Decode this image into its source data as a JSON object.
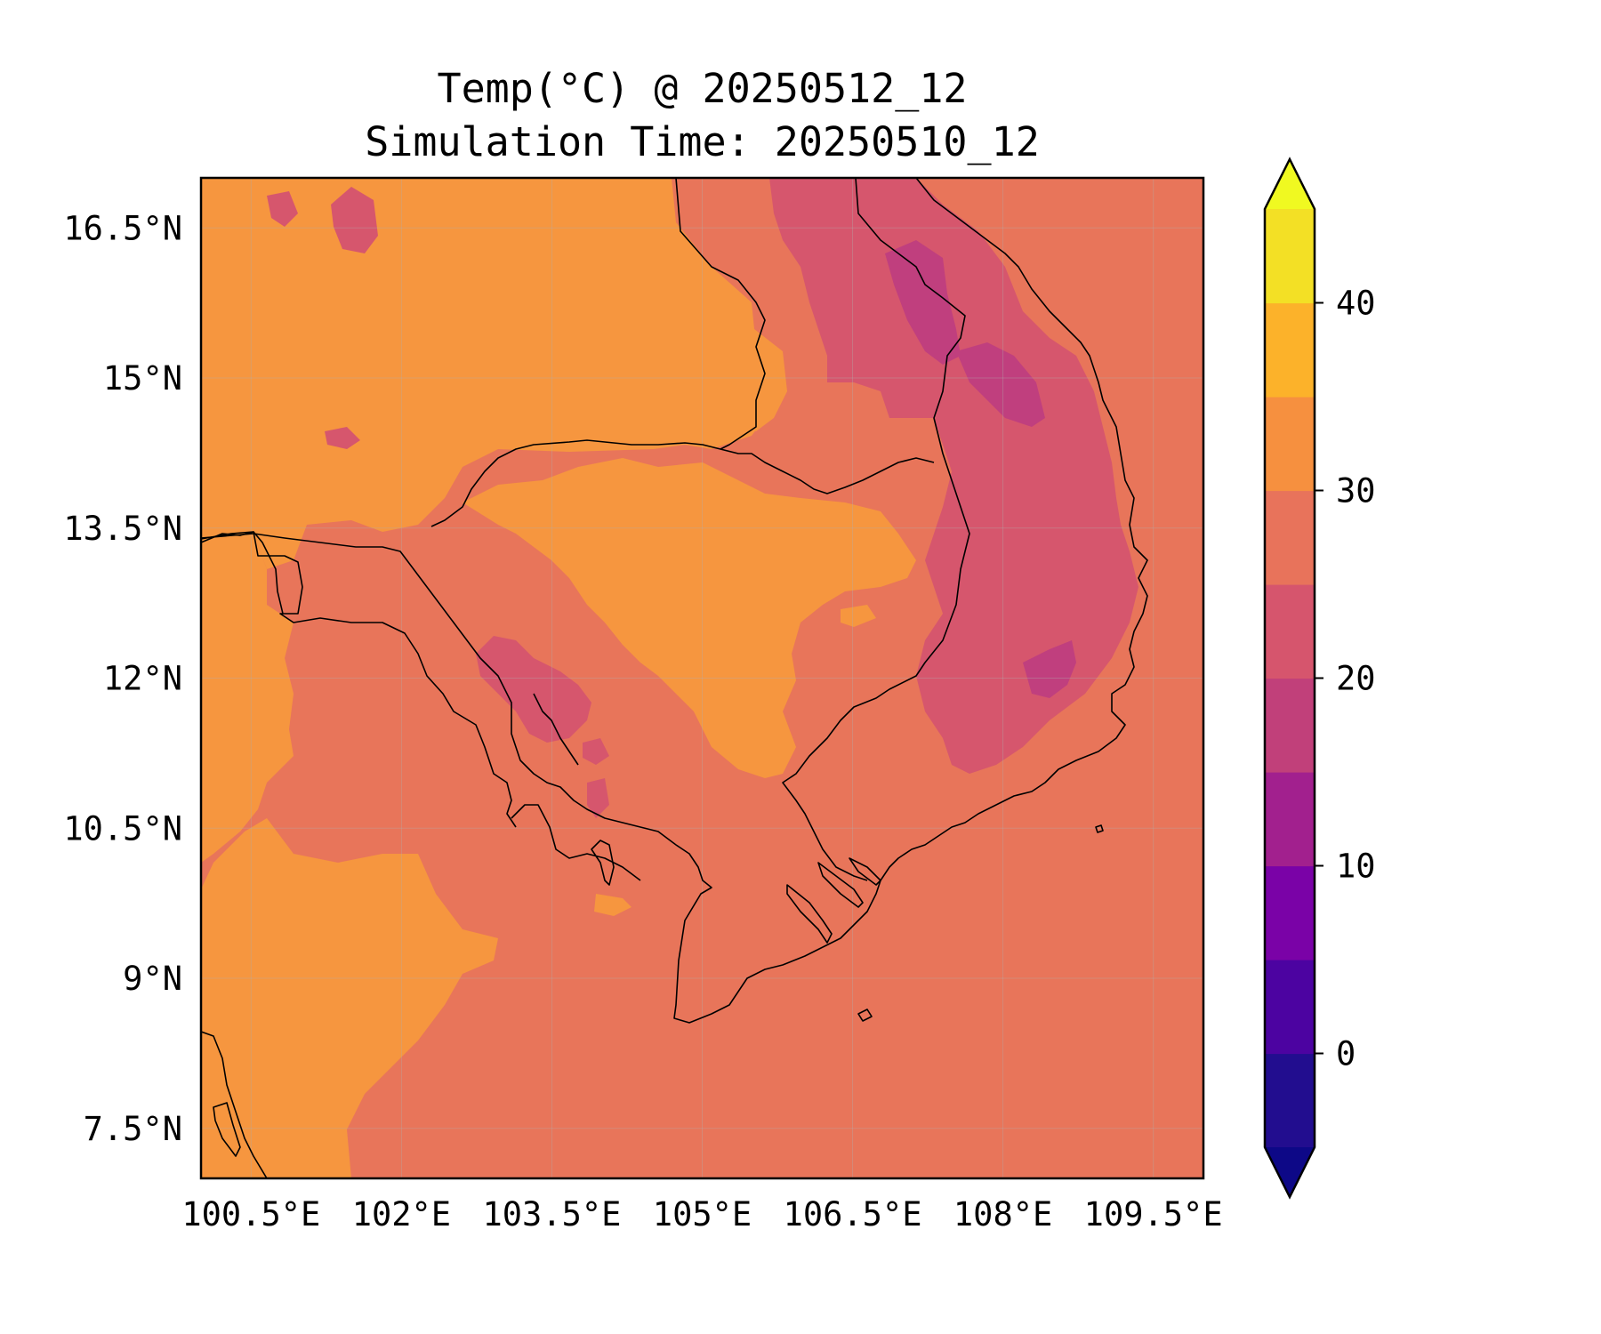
{
  "title": {
    "line1": "Temp(°C) @ 20250512_12",
    "line2": "Simulation Time: 20250510_12"
  },
  "map": {
    "region": "Cambodia / southern Vietnam / eastern Thailand",
    "lon_range": [
      100.0,
      110.0
    ],
    "lat_range": [
      7.0,
      17.0
    ],
    "x_ticks": [
      {
        "value": 100.5,
        "label": "100.5°E"
      },
      {
        "value": 102,
        "label": "102°E"
      },
      {
        "value": 103.5,
        "label": "103.5°E"
      },
      {
        "value": 105,
        "label": "105°E"
      },
      {
        "value": 106.5,
        "label": "106.5°E"
      },
      {
        "value": 108,
        "label": "108°E"
      },
      {
        "value": 109.5,
        "label": "109.5°E"
      }
    ],
    "y_ticks": [
      {
        "value": 16.5,
        "label": "16.5°N"
      },
      {
        "value": 15,
        "label": "15°N"
      },
      {
        "value": 13.5,
        "label": "13.5°N"
      },
      {
        "value": 12,
        "label": "12°N"
      },
      {
        "value": 10.5,
        "label": "10.5°N"
      },
      {
        "value": 9,
        "label": "9°N"
      },
      {
        "value": 7.5,
        "label": "7.5°N"
      }
    ],
    "gridlines": true
  },
  "colorbar": {
    "levels": [
      -5,
      0,
      5,
      10,
      15,
      20,
      25,
      30,
      35,
      40,
      45
    ],
    "colors": [
      "#220d8f",
      "#4c03a1",
      "#7a02a7",
      "#a2208e",
      "#c1407a",
      "#d6556d",
      "#e8735b",
      "#f6903f",
      "#fcb22a",
      "#f3e025"
    ],
    "under_color": "#0d0887",
    "over_color": "#f0f921",
    "extend": "both",
    "ticks": [
      {
        "value": 0,
        "label": "0"
      },
      {
        "value": 10,
        "label": "10"
      },
      {
        "value": 20,
        "label": "20"
      },
      {
        "value": 30,
        "label": "30"
      },
      {
        "value": 40,
        "label": "40"
      }
    ]
  },
  "field_colors": {
    "c30_35": "#f6963f",
    "c25_30": "#e8755a",
    "c20_25": "#d6566d",
    "c15_20": "#c03f7e"
  }
}
